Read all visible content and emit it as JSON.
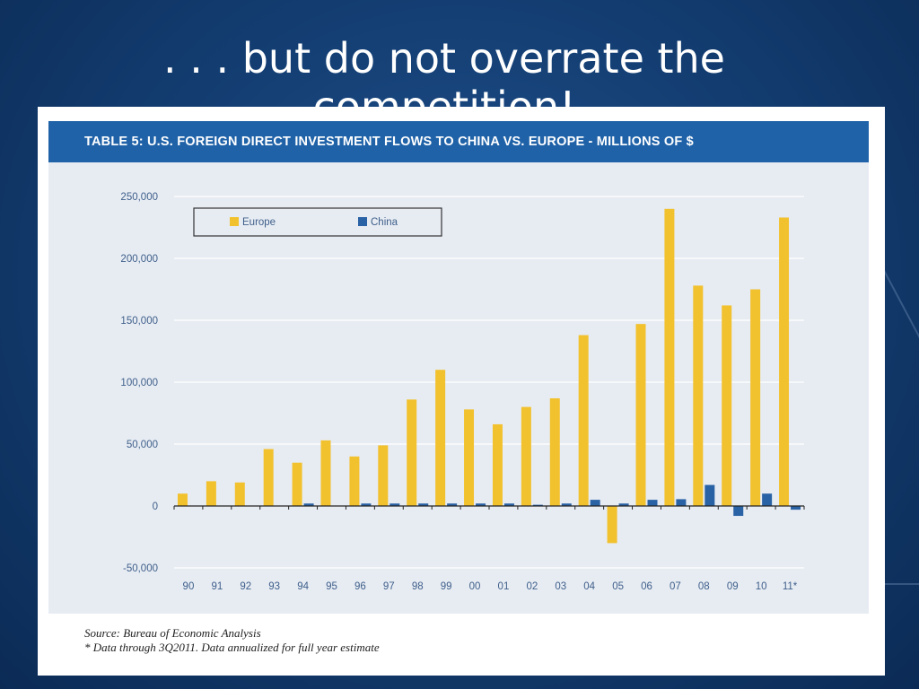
{
  "slide": {
    "title": ". . . but do not overrate the competition!"
  },
  "figure": {
    "header": "TABLE 5: U.S. FOREIGN DIRECT INVESTMENT FLOWS TO CHINA VS. EUROPE - MILLIONS OF $",
    "source": "Source: Bureau of Economic Analysis",
    "note": "* Data through 3Q2011. Data annualized for full year estimate"
  },
  "colors": {
    "europe": "#f2c12e",
    "china": "#2a62a6",
    "header_bg": "#1f62a8",
    "panel_bg": "#e7ecf3"
  },
  "chart_data": {
    "type": "bar",
    "title": "TABLE 5: U.S. FOREIGN DIRECT INVESTMENT FLOWS TO CHINA VS. EUROPE - MILLIONS OF $",
    "categories": [
      "90",
      "91",
      "92",
      "93",
      "94",
      "95",
      "96",
      "97",
      "98",
      "99",
      "00",
      "01",
      "02",
      "03",
      "04",
      "05",
      "06",
      "07",
      "08",
      "09",
      "10",
      "11*"
    ],
    "series": [
      {
        "name": "Europe",
        "color": "#f2c12e",
        "values": [
          10000,
          20000,
          19000,
          46000,
          35000,
          53000,
          40000,
          49000,
          86000,
          110000,
          78000,
          66000,
          80000,
          87000,
          138000,
          -30000,
          147000,
          240000,
          178000,
          162000,
          175000,
          233000
        ]
      },
      {
        "name": "China",
        "color": "#2a62a6",
        "values": [
          0,
          0,
          0,
          0,
          2000,
          0,
          2000,
          2000,
          2000,
          2000,
          2000,
          2000,
          1000,
          2000,
          5000,
          2000,
          5000,
          5500,
          17000,
          -8000,
          10000,
          -3000
        ]
      }
    ],
    "ylim": [
      -50000,
      250000
    ],
    "yticks": [
      -50000,
      0,
      50000,
      100000,
      150000,
      200000,
      250000
    ],
    "ytick_labels": [
      "-50,000",
      "0",
      "50,000",
      "100,000",
      "150,000",
      "200,000",
      "250,000"
    ],
    "grid": true,
    "legend_position": "top-left"
  }
}
